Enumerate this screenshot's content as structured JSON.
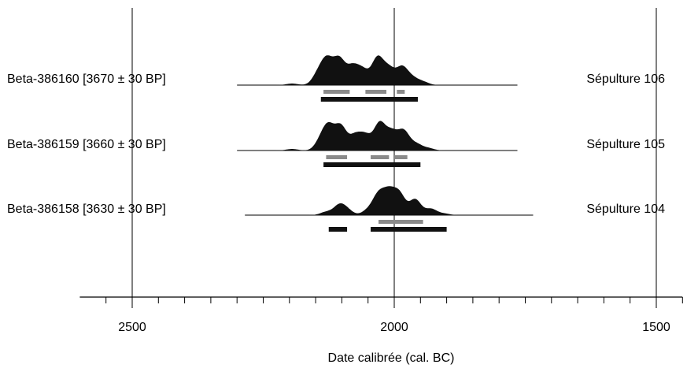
{
  "chart_data": {
    "type": "area",
    "xlabel": "Date calibrée (cal. BC)",
    "x_axis": {
      "direction": "descending-left-to-right",
      "range": [
        2600,
        1450
      ],
      "major_ticks": [
        2500,
        2000,
        1500
      ],
      "minor_tick_step": 50,
      "grid": "vertical lines at major ticks"
    },
    "colors": {
      "distribution": "#111111",
      "range_68": "#8a8a8a",
      "range_95": "#111111"
    },
    "samples": [
      {
        "label": "Beta-386160 [3670 ± 30 BP]",
        "burial": "Sépulture 106",
        "baseline_range": [
          2300,
          1765
        ],
        "peaks": [
          [
            2195,
            2
          ],
          [
            2145,
            14
          ],
          [
            2128,
            30
          ],
          [
            2105,
            32
          ],
          [
            2080,
            22
          ],
          [
            2060,
            18
          ],
          [
            2032,
            34
          ],
          [
            2010,
            20
          ],
          [
            1985,
            22
          ],
          [
            1965,
            8
          ],
          [
            1945,
            4
          ]
        ],
        "range_68": [
          [
            2135,
            2085
          ],
          [
            2055,
            2015
          ],
          [
            1995,
            1980
          ]
        ],
        "range_95": [
          [
            2140,
            1955
          ]
        ]
      },
      {
        "label": "Beta-386159 [3660 ± 30 BP]",
        "burial": "Sépulture 105",
        "baseline_range": [
          2300,
          1765
        ],
        "peaks": [
          [
            2195,
            2
          ],
          [
            2140,
            12
          ],
          [
            2125,
            28
          ],
          [
            2102,
            30
          ],
          [
            2075,
            18
          ],
          [
            2055,
            18
          ],
          [
            2028,
            34
          ],
          [
            2005,
            22
          ],
          [
            1982,
            24
          ],
          [
            1958,
            8
          ],
          [
            1935,
            3
          ]
        ],
        "range_68": [
          [
            2130,
            2090
          ],
          [
            2045,
            2010
          ],
          [
            2000,
            1975
          ]
        ],
        "range_95": [
          [
            2135,
            1950
          ]
        ]
      },
      {
        "label": "Beta-386158 [3630 ± 30 BP]",
        "burial": "Sépulture 104",
        "baseline_range": [
          2285,
          1735
        ],
        "peaks": [
          [
            2130,
            4
          ],
          [
            2105,
            12
          ],
          [
            2090,
            6
          ],
          [
            2050,
            6
          ],
          [
            2030,
            25
          ],
          [
            2010,
            27
          ],
          [
            1990,
            26
          ],
          [
            1960,
            20
          ],
          [
            1930,
            8
          ],
          [
            1905,
            2
          ]
        ],
        "range_68": [
          [
            2030,
            1945
          ]
        ],
        "range_95": [
          [
            2125,
            2090
          ],
          [
            2045,
            1900
          ]
        ]
      }
    ]
  }
}
